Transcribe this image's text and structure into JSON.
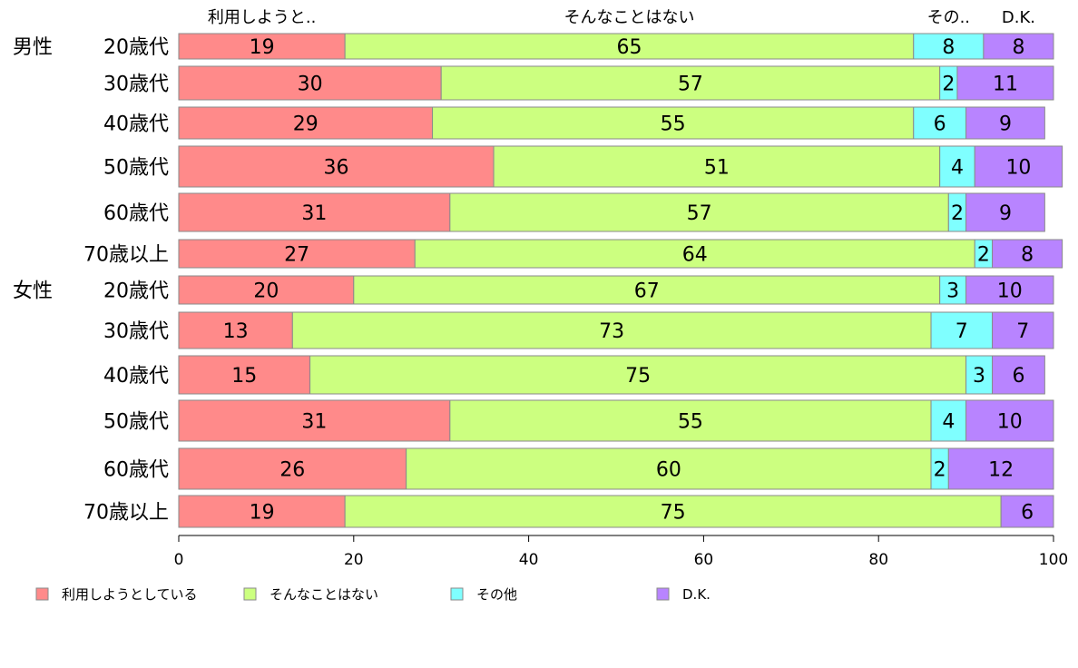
{
  "chart_data": {
    "type": "bar",
    "orientation": "horizontal",
    "stacked": true,
    "xlim": [
      0,
      100
    ],
    "xticks": [
      "0",
      "20",
      "40",
      "60",
      "80",
      "100"
    ],
    "group_labels": [
      "男性",
      "女性"
    ],
    "categories": [
      "20歳代",
      "30歳代",
      "40歳代",
      "50歳代",
      "60歳代",
      "70歳以上",
      "20歳代",
      "30歳代",
      "40歳代",
      "50歳代",
      "60歳代",
      "70歳以上"
    ],
    "top_labels": [
      "利用しようと..",
      "そんなことはない",
      "その..",
      "D.K."
    ],
    "series": [
      {
        "name": "利用しようとしている",
        "color": "#FF8A8A",
        "values": [
          19,
          30,
          29,
          36,
          31,
          27,
          20,
          13,
          15,
          31,
          26,
          19
        ]
      },
      {
        "name": "そんなことはない",
        "color": "#CCFF80",
        "values": [
          65,
          57,
          55,
          51,
          57,
          64,
          67,
          73,
          75,
          55,
          60,
          75
        ]
      },
      {
        "name": "その他",
        "color": "#7FFFFF",
        "values": [
          8,
          2,
          6,
          4,
          2,
          2,
          3,
          7,
          3,
          4,
          2,
          0
        ]
      },
      {
        "name": "D.K.",
        "color": "#B884FF",
        "values": [
          8,
          11,
          9,
          10,
          9,
          8,
          10,
          7,
          6,
          10,
          12,
          6
        ]
      }
    ],
    "legend_position": "bottom"
  }
}
